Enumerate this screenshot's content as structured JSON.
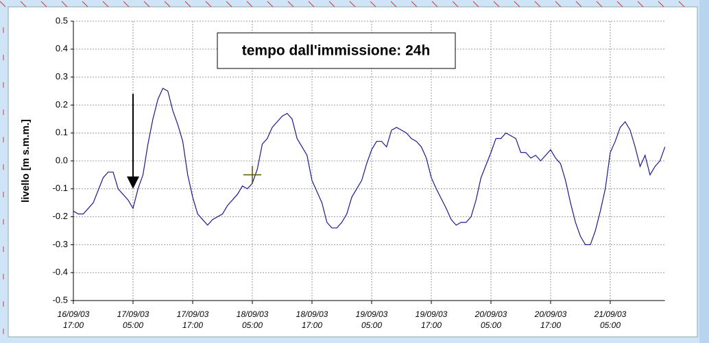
{
  "chart_data": {
    "type": "line",
    "annotation": "tempo dall'immissione: 24h",
    "y_label": "livello [m s.m.m.]",
    "x": [
      "16/09/03 17:00",
      "16/09/03 18:00",
      "16/09/03 19:00",
      "16/09/03 21:00",
      "16/09/03 23:00",
      "17/09/03 00:00",
      "17/09/03 01:00",
      "17/09/03 02:00",
      "17/09/03 04:00",
      "17/09/03 05:00",
      "17/09/03 06:00",
      "17/09/03 07:00",
      "17/09/03 08:00",
      "17/09/03 09:00",
      "17/09/03 10:00",
      "17/09/03 11:00",
      "17/09/03 12:00",
      "17/09/03 13:00",
      "17/09/03 14:00",
      "17/09/03 15:00",
      "17/09/03 16:00",
      "17/09/03 17:00",
      "17/09/03 18:00",
      "17/09/03 19:00",
      "17/09/03 20:00",
      "17/09/03 21:00",
      "17/09/03 23:00",
      "18/09/03 00:00",
      "18/09/03 02:00",
      "18/09/03 03:00",
      "18/09/03 04:00",
      "18/09/03 05:00",
      "18/09/03 06:00",
      "18/09/03 07:00",
      "18/09/03 08:00",
      "18/09/03 09:00",
      "18/09/03 10:00",
      "18/09/03 11:00",
      "18/09/03 12:00",
      "18/09/03 13:00",
      "18/09/03 14:00",
      "18/09/03 16:00",
      "18/09/03 17:00",
      "18/09/03 19:00",
      "18/09/03 20:00",
      "18/09/03 21:00",
      "18/09/03 22:00",
      "18/09/03 23:00",
      "19/09/03 00:00",
      "19/09/03 01:00",
      "19/09/03 03:00",
      "19/09/03 04:00",
      "19/09/03 05:00",
      "19/09/03 06:00",
      "19/09/03 07:00",
      "19/09/03 08:00",
      "19/09/03 09:00",
      "19/09/03 10:00",
      "19/09/03 11:00",
      "19/09/03 12:00",
      "19/09/03 13:00",
      "19/09/03 14:00",
      "19/09/03 15:00",
      "19/09/03 16:00",
      "19/09/03 17:00",
      "19/09/03 18:00",
      "19/09/03 20:00",
      "19/09/03 21:00",
      "19/09/03 22:00",
      "19/09/03 23:00",
      "20/09/03 00:00",
      "20/09/03 01:00",
      "20/09/03 02:00",
      "20/09/03 03:00",
      "20/09/03 05:00",
      "20/09/03 06:00",
      "20/09/03 07:00",
      "20/09/03 08:00",
      "20/09/03 09:00",
      "20/09/03 10:00",
      "20/09/03 11:00",
      "20/09/03 12:00",
      "20/09/03 13:00",
      "20/09/03 14:00",
      "20/09/03 15:00",
      "20/09/03 16:00",
      "20/09/03 17:00",
      "20/09/03 18:00",
      "20/09/03 19:00",
      "20/09/03 20:00",
      "20/09/03 21:00",
      "20/09/03 22:00",
      "20/09/03 23:00",
      "21/09/03 00:00",
      "21/09/03 01:00",
      "21/09/03 02:00",
      "21/09/03 03:00",
      "21/09/03 04:00",
      "21/09/03 05:00",
      "21/09/03 06:00",
      "21/09/03 07:00",
      "21/09/03 08:00",
      "21/09/03 09:00",
      "21/09/03 10:00",
      "21/09/03 11:00",
      "21/09/03 12:00",
      "21/09/03 13:00",
      "21/09/03 14:00",
      "21/09/03 15:00",
      "21/09/03 16:00"
    ],
    "series": [
      {
        "color": "#1a1a8c",
        "values": [
          -0.18,
          -0.19,
          -0.19,
          -0.15,
          -0.06,
          -0.04,
          -0.04,
          -0.1,
          -0.14,
          -0.17,
          -0.1,
          -0.05,
          0.06,
          0.15,
          0.22,
          0.26,
          0.25,
          0.18,
          0.13,
          0.07,
          -0.05,
          -0.13,
          -0.19,
          -0.21,
          -0.23,
          -0.21,
          -0.19,
          -0.16,
          -0.12,
          -0.09,
          -0.1,
          -0.08,
          -0.03,
          0.06,
          0.08,
          0.12,
          0.14,
          0.16,
          0.17,
          0.15,
          0.08,
          0.02,
          -0.07,
          -0.15,
          -0.22,
          -0.24,
          -0.24,
          -0.22,
          -0.19,
          -0.13,
          -0.07,
          -0.01,
          0.04,
          0.07,
          0.07,
          0.05,
          0.11,
          0.12,
          0.11,
          0.1,
          0.08,
          0.07,
          0.05,
          0.01,
          -0.06,
          -0.1,
          -0.17,
          -0.21,
          -0.23,
          -0.22,
          -0.22,
          -0.2,
          -0.14,
          -0.06,
          0.03,
          0.08,
          0.08,
          0.1,
          0.09,
          0.08,
          0.03,
          0.03,
          0.01,
          0.02,
          0.0,
          0.02,
          0.04,
          0.01,
          -0.01,
          -0.07,
          -0.15,
          -0.22,
          -0.27,
          -0.3,
          -0.3,
          -0.25,
          -0.18,
          -0.1,
          0.03,
          0.07,
          0.12,
          0.14,
          0.11,
          0.05,
          -0.02,
          0.02,
          -0.05,
          -0.02,
          0.0,
          0.05
        ]
      }
    ],
    "xlim": [
      "16/09/03 17:00",
      "21/09/03 16:00"
    ],
    "xticks": [
      "16/09/03 17:00",
      "17/09/03 05:00",
      "17/09/03 17:00",
      "18/09/03 05:00",
      "18/09/03 17:00",
      "19/09/03 05:00",
      "19/09/03 17:00",
      "20/09/03 05:00",
      "20/09/03 17:00",
      "21/09/03 05:00"
    ],
    "ylim": [
      -0.5,
      0.5
    ],
    "yticks": [
      -0.5,
      -0.4,
      -0.3,
      -0.2,
      -0.1,
      {
        "value": 0,
        "label": "0.0"
      },
      0.1,
      0.2,
      0.3,
      0.4,
      0.5
    ],
    "grid": true,
    "arrow": {
      "x": "17/09/03 05:00",
      "from": 0.24,
      "to": -0.1
    },
    "marker": {
      "x": "18/09/03 05:00",
      "y": -0.05
    }
  }
}
